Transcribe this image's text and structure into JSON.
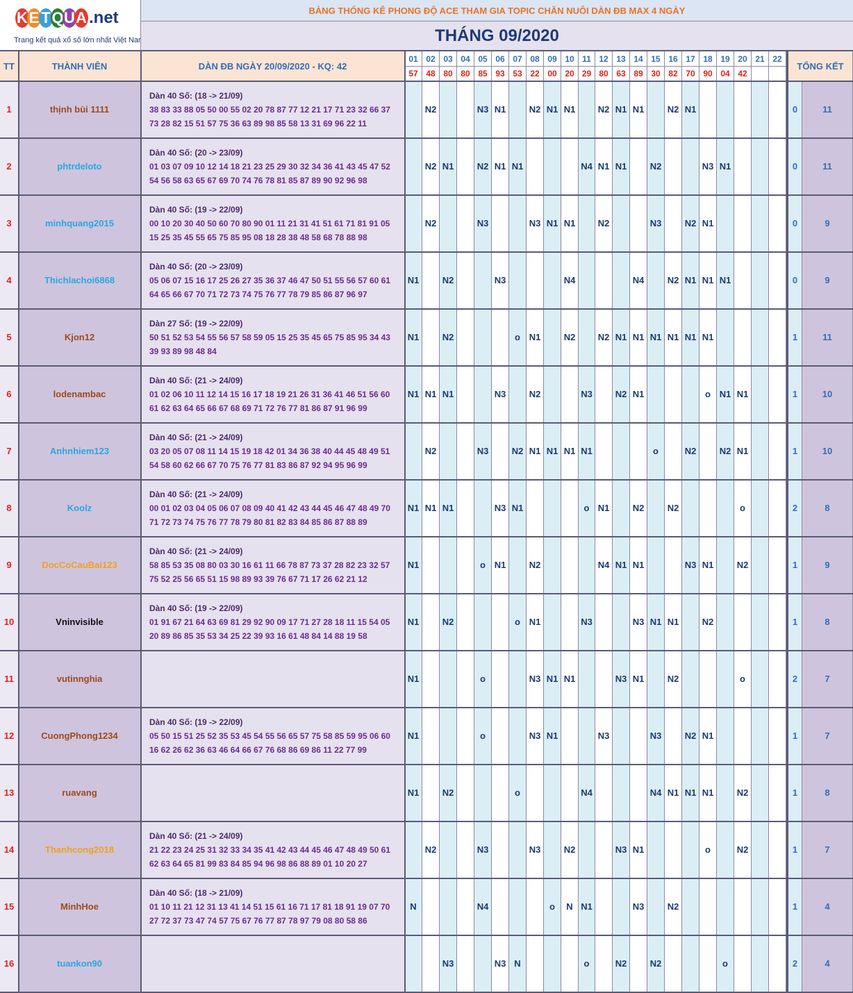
{
  "logo": {
    "letters": [
      "K",
      "E",
      "T",
      "Q",
      "U",
      "A"
    ],
    "suffix": ".net",
    "tagline": "Trang kết quả xổ số lớn nhất Việt Nam",
    "letter_colors": [
      "#e53a2f",
      "#f28c28",
      "#3b9fd8",
      "#2e7d32",
      "#8e44ad",
      "#e53a2f"
    ]
  },
  "title": "BẢNG THỐNG KÊ PHONG ĐỘ ACE THAM GIA TOPIC CHĂN NUÔI DÀN ĐB MAX 4 NGÀY",
  "month": "THÁNG 09/2020",
  "headers": {
    "tt": "TT",
    "member": "THÀNH VIÊN",
    "dan": "DÀN ĐB NGÀY 20/09/2020 - KQ: 42",
    "total": "TỔNG KẾT"
  },
  "days": [
    "01",
    "02",
    "03",
    "04",
    "05",
    "06",
    "07",
    "08",
    "09",
    "10",
    "11",
    "12",
    "13",
    "14",
    "15",
    "16",
    "17",
    "18",
    "19",
    "20",
    "21",
    "22"
  ],
  "results": [
    "57",
    "48",
    "80",
    "80",
    "85",
    "93",
    "53",
    "22",
    "00",
    "20",
    "29",
    "80",
    "63",
    "89",
    "30",
    "82",
    "70",
    "90",
    "04",
    "42",
    "",
    ""
  ],
  "rows": [
    {
      "tt": "1",
      "name": "thịnh bùi 1111",
      "color": "#9c4a1a",
      "dan_title": "Dàn 40 Số: (18 -> 21/09)",
      "dan_line1": "38 83 33 88 05 50 00 55 02 20 78 87 77 12 21 17 71 23 32 66 37",
      "dan_line2": "73 28 82 15 51 57 75 36 63 89 98 85 58 13 31 69 96 22 11",
      "marks": [
        "",
        "N2",
        "",
        "",
        "N3",
        "N1",
        "",
        "N2",
        "N1",
        "N1",
        "",
        "N2",
        "N1",
        "N1",
        "",
        "N2",
        "N1",
        "",
        "",
        "",
        "",
        ""
      ],
      "s1": "0",
      "s2": "11"
    },
    {
      "tt": "2",
      "name": "phtrdeloto",
      "color": "#2ca6e0",
      "dan_title": "Dàn 40 Số: (20 -> 23/09)",
      "dan_line1": "01 03 07 09 10 12 14 18 21 23 25 29 30 32 34 36 41 43 45 47 52",
      "dan_line2": "54 56 58 63 65 67 69 70 74 76 78 81 85 87 89 90 92 96 98",
      "marks": [
        "",
        "N2",
        "N1",
        "",
        "N2",
        "N1",
        "N1",
        "",
        "",
        "",
        "N4",
        "N1",
        "N1",
        "",
        "N2",
        "",
        "",
        "N3",
        "N1",
        "",
        "",
        ""
      ],
      "s1": "0",
      "s2": "11"
    },
    {
      "tt": "3",
      "name": "minhquang2015",
      "color": "#2ca6e0",
      "dan_title": "Dàn 40 Số: (19 -> 22/09)",
      "dan_line1": "00 10 20 30 40 50 60 70 80 90 01 11 21 31 41 51 61 71 81 91 05",
      "dan_line2": "15 25 35 45 55 65 75 85 95 08 18 28 38 48 58 68 78 88 98",
      "marks": [
        "",
        "N2",
        "",
        "",
        "N3",
        "",
        "",
        "N3",
        "N1",
        "N1",
        "",
        "N2",
        "",
        "",
        "N3",
        "",
        "N2",
        "N1",
        "",
        "",
        "",
        ""
      ],
      "s1": "0",
      "s2": "9"
    },
    {
      "tt": "4",
      "name": "Thichlachoi6868",
      "color": "#2ca6e0",
      "dan_title": "Dàn 40 Số: (20 -> 23/09)",
      "dan_line1": "05 06 07 15 16 17 25 26 27 35 36 37 46 47 50 51 55 56 57 60 61",
      "dan_line2": "64 65 66 67 70 71 72 73 74 75 76 77 78 79 85 86 87 96 97",
      "marks": [
        "N1",
        "",
        "N2",
        "",
        "",
        "N3",
        "",
        "",
        "",
        "N4",
        "",
        "",
        "",
        "N4",
        "",
        "N2",
        "N1",
        "N1",
        "N1",
        "",
        "",
        ""
      ],
      "s1": "0",
      "s2": "9"
    },
    {
      "tt": "5",
      "name": "Kjon12",
      "color": "#9c4a1a",
      "dan_title": "Dàn 27 Số: (19 -> 22/09)",
      "dan_line1": "50 51 52 53 54 55 56 57 58 59 05 15 25 35 45 65 75 85 95 34 43",
      "dan_line2": "39 93 89 98 48 84",
      "marks": [
        "N1",
        "",
        "N2",
        "",
        "",
        "",
        "o",
        "N1",
        "",
        "N2",
        "",
        "N2",
        "N1",
        "N1",
        "N1",
        "N1",
        "N1",
        "N1",
        "",
        "",
        "",
        ""
      ],
      "s1": "1",
      "s2": "11"
    },
    {
      "tt": "6",
      "name": "lodenambac",
      "color": "#9c4a1a",
      "dan_title": "Dàn 40 Số: (21 -> 24/09)",
      "dan_line1": "01 02 06 10 11 12 14 15 16 17 18 19 21 26 31 36 41 46 51 56 60",
      "dan_line2": "61 62 63 64 65 66 67 68 69 71 72 76 77 81 86 87 91 96 99",
      "marks": [
        "N1",
        "N1",
        "N1",
        "",
        "",
        "N3",
        "",
        "N2",
        "",
        "",
        "N3",
        "",
        "N2",
        "N1",
        "",
        "",
        "",
        "o",
        "N1",
        "N1",
        "",
        ""
      ],
      "s1": "1",
      "s2": "10"
    },
    {
      "tt": "7",
      "name": "Anhnhiem123",
      "color": "#2ca6e0",
      "dan_title": "Dàn 40 Số: (21 -> 24/09)",
      "dan_line1": "03 20 05 07 08 11 14 15 19 18 42 01 34 36 38 40 44 45 48 49 51",
      "dan_line2": "54 58 60 62 66 67 70 75 76 77 81 83 86 87 92 94 95 96 99",
      "marks": [
        "",
        "N2",
        "",
        "",
        "N3",
        "",
        "N2",
        "N1",
        "N1",
        "N1",
        "N1",
        "",
        "",
        "",
        "o",
        "",
        "N2",
        "",
        "N2",
        "N1",
        "",
        ""
      ],
      "s1": "1",
      "s2": "10"
    },
    {
      "tt": "8",
      "name": "Koolz",
      "color": "#2ca6e0",
      "dan_title": "Dàn 40 Số: (21 -> 24/09)",
      "dan_line1": "00 01 02 03 04 05 06 07 08 09 40 41 42 43 44 45 46 47 48 49 70",
      "dan_line2": "71 72 73 74 75 76 77 78 79 80 81 82 83 84 85 86 87 88 89",
      "marks": [
        "N1",
        "N1",
        "N1",
        "",
        "",
        "N3",
        "N1",
        "",
        "",
        "",
        "o",
        "N1",
        "",
        "N2",
        "",
        "N2",
        "",
        "",
        "",
        "o",
        "",
        ""
      ],
      "s1": "2",
      "s2": "8"
    },
    {
      "tt": "9",
      "name": "DocCoCauBai123",
      "color": "#f0a020",
      "dan_title": "Dàn 40 Số: (21 -> 24/09)",
      "dan_line1": "58 85 53 35 08 80 03 30 16 61 11 66 78 87 73 37 28 82 23 32 57",
      "dan_line2": "75 52 25 56 65 51 15 98 89 93 39 76 67 71 17 26 62 21 12",
      "marks": [
        "N1",
        "",
        "",
        "",
        "o",
        "N1",
        "",
        "N2",
        "",
        "",
        "",
        "N4",
        "N1",
        "N1",
        "",
        "",
        "N3",
        "N1",
        "",
        "N2",
        "",
        ""
      ],
      "s1": "1",
      "s2": "9"
    },
    {
      "tt": "10",
      "name": "Vninvisible",
      "color": "#111111",
      "dan_title": "Dàn 40 Số: (19 -> 22/09)",
      "dan_line1": "01 91 67 21 64 63 69 81 29 92 90 09 17 71 27 28 18 11 15 54 05",
      "dan_line2": "20 89 86 85 35 53 34 25 22 39 93 16 61 48 84 14 88 19 58",
      "marks": [
        "N1",
        "",
        "N2",
        "",
        "",
        "",
        "o",
        "N1",
        "",
        "",
        "N3",
        "",
        "",
        "N3",
        "N1",
        "N1",
        "",
        "N2",
        "",
        "",
        "",
        ""
      ],
      "s1": "1",
      "s2": "8"
    },
    {
      "tt": "11",
      "name": "vutinnghia",
      "color": "#9c4a1a",
      "dan_title": "",
      "dan_line1": "",
      "dan_line2": "",
      "marks": [
        "N1",
        "",
        "",
        "",
        "o",
        "",
        "",
        "N3",
        "N1",
        "N1",
        "",
        "",
        "N3",
        "N1",
        "",
        "N2",
        "",
        "",
        "",
        "o",
        "",
        ""
      ],
      "s1": "2",
      "s2": "7"
    },
    {
      "tt": "12",
      "name": "CuongPhong1234",
      "color": "#9c4a1a",
      "dan_title": "Dàn 40 Số: (19 -> 22/09)",
      "dan_line1": "05 50 15 51 25 52 35 53 45 54 55 56 65 57 75 58 85 59 95 06 60",
      "dan_line2": "16 62 26 62 36 63 46 64 66 67 76 68 86 69 86 11 22 77 99",
      "marks": [
        "N1",
        "",
        "",
        "",
        "o",
        "",
        "",
        "N3",
        "N1",
        "",
        "",
        "N3",
        "",
        "",
        "N3",
        "",
        "N2",
        "N1",
        "",
        "",
        "",
        ""
      ],
      "s1": "1",
      "s2": "7"
    },
    {
      "tt": "13",
      "name": "ruavang",
      "color": "#9c4a1a",
      "dan_title": "",
      "dan_line1": "",
      "dan_line2": "",
      "marks": [
        "N1",
        "",
        "N2",
        "",
        "",
        "",
        "o",
        "",
        "",
        "",
        "N4",
        "",
        "",
        "",
        "N4",
        "N1",
        "N1",
        "N1",
        "",
        "N2",
        "",
        ""
      ],
      "s1": "1",
      "s2": "8"
    },
    {
      "tt": "14",
      "name": "Thanhcong2018",
      "color": "#f0a020",
      "dan_title": "Dàn 40 Số: (21 -> 24/09)",
      "dan_line1": "21 22 23 24 25 31 32 33 34 35 41 42 43 44 45 46 47 48 49 50 61",
      "dan_line2": "62 63 64 65 81 99 83 84 85 94 96 98 86 88 89 01 10 20 27",
      "marks": [
        "",
        "N2",
        "",
        "",
        "N3",
        "",
        "",
        "N3",
        "",
        "N2",
        "",
        "",
        "N3",
        "N1",
        "",
        "",
        "",
        "o",
        "",
        "N2",
        "",
        ""
      ],
      "s1": "1",
      "s2": "7"
    },
    {
      "tt": "15",
      "name": "MinhHoe",
      "color": "#9c4a1a",
      "dan_title": "Dàn 40 Số: (18 -> 21/09)",
      "dan_line1": "01 10 11 21 12 31 13 41 14 51 15 61 16 71 17 81 18 91 19 07 70",
      "dan_line2": "27 72 37 73 47 74 57 75 67 76 77 87 78 97 79 08 80 58 86",
      "marks": [
        "N",
        "",
        "",
        "",
        "N4",
        "",
        "",
        "",
        "o",
        "N",
        "N1",
        "",
        "",
        "N3",
        "",
        "N2",
        "",
        "",
        "",
        "",
        "",
        ""
      ],
      "s1": "1",
      "s2": "4"
    },
    {
      "tt": "16",
      "name": "tuankon90",
      "color": "#2ca6e0",
      "dan_title": "",
      "dan_line1": "",
      "dan_line2": "",
      "marks": [
        "",
        "",
        "N3",
        "",
        "",
        "N3",
        "N",
        "",
        "",
        "",
        "o",
        "",
        "N2",
        "",
        "N2",
        "",
        "",
        "",
        "o",
        "",
        "",
        ""
      ],
      "s1": "2",
      "s2": "4"
    }
  ]
}
